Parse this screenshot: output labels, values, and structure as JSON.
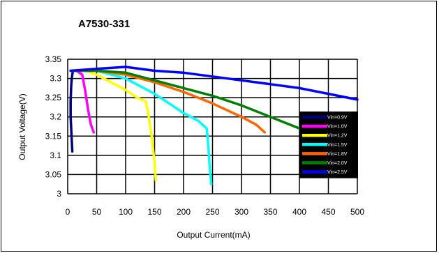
{
  "chart_data": {
    "type": "line",
    "title": "A7530-331",
    "xlabel": "Output Current(mA)",
    "ylabel": "Output Voltage(V)",
    "xlim": [
      0,
      500
    ],
    "ylim": [
      3,
      3.35
    ],
    "xticks": [
      0,
      50,
      100,
      150,
      200,
      250,
      300,
      350,
      400,
      450,
      500
    ],
    "yticks": [
      3,
      3.05,
      3.1,
      3.15,
      3.2,
      3.25,
      3.3,
      3.35
    ],
    "ytick_labels": [
      "3",
      "3.05",
      "3.1",
      "3.15",
      "3.2",
      "3.25",
      "3.3",
      "3.35"
    ],
    "grid": true,
    "legend_position": "right",
    "series": [
      {
        "name": "Vin=0.9V",
        "color": "#000080",
        "x": [
          8,
          7,
          6,
          5,
          5,
          6,
          7,
          8,
          9
        ],
        "y": [
          3.11,
          3.14,
          3.17,
          3.2,
          3.24,
          3.28,
          3.3,
          3.31,
          3.32
        ]
      },
      {
        "name": "Vin=1.0V",
        "color": "#ff00ff",
        "x": [
          5,
          15,
          25,
          30,
          35,
          40,
          45
        ],
        "y": [
          3.32,
          3.32,
          3.31,
          3.27,
          3.22,
          3.18,
          3.16
        ]
      },
      {
        "name": "Vin=1.2V",
        "color": "#ffff00",
        "x": [
          5,
          30,
          50,
          75,
          100,
          120,
          135,
          140,
          145,
          150,
          152
        ],
        "y": [
          3.32,
          3.32,
          3.31,
          3.29,
          3.27,
          3.25,
          3.24,
          3.2,
          3.15,
          3.08,
          3.035
        ]
      },
      {
        "name": "Vin=1.5V",
        "color": "#00ffff",
        "x": [
          5,
          50,
          75,
          100,
          150,
          200,
          225,
          240,
          243,
          245,
          248
        ],
        "y": [
          3.32,
          3.32,
          3.31,
          3.3,
          3.26,
          3.21,
          3.19,
          3.17,
          3.12,
          3.07,
          3.025
        ]
      },
      {
        "name": "Vin=1.8V",
        "color": "#ff6600",
        "x": [
          5,
          50,
          100,
          150,
          200,
          250,
          300,
          325,
          340
        ],
        "y": [
          3.32,
          3.32,
          3.31,
          3.29,
          3.265,
          3.235,
          3.2,
          3.18,
          3.16
        ]
      },
      {
        "name": "Vin=2.0V",
        "color": "#008000",
        "x": [
          5,
          50,
          100,
          150,
          200,
          250,
          300,
          350,
          400,
          430
        ],
        "y": [
          3.32,
          3.32,
          3.315,
          3.295,
          3.275,
          3.255,
          3.23,
          3.2,
          3.17,
          3.15
        ]
      },
      {
        "name": "Vin=2.5V",
        "color": "#0000ff",
        "x": [
          5,
          50,
          100,
          150,
          200,
          250,
          300,
          350,
          400,
          450,
          500
        ],
        "y": [
          3.32,
          3.325,
          3.33,
          3.32,
          3.315,
          3.305,
          3.295,
          3.285,
          3.275,
          3.26,
          3.245
        ]
      }
    ]
  }
}
